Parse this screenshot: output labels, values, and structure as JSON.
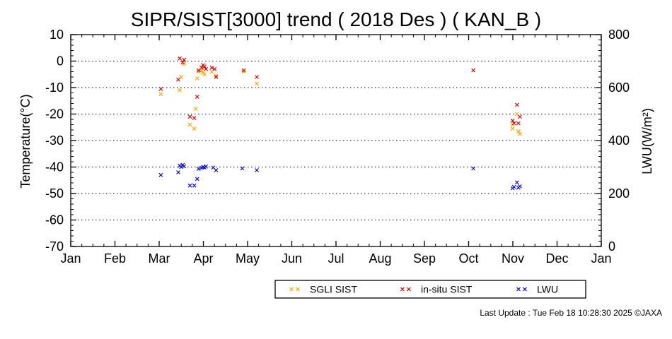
{
  "footer": "Last Update : Tue Feb 18 10:28:30 2025  ©JAXA",
  "colors": {
    "sgli": "#ffa500",
    "insitu": "#e00000",
    "lwu": "#0000e0",
    "axis": "#000000"
  },
  "chart_data": {
    "type": "scatter",
    "title": "SIPR/SIST[3000] trend ( 2018 Des ) ( KAN_B )",
    "ylabel": "Temperature(°C)",
    "y2label": "LWU(W/m²)",
    "xlabel": "",
    "x_tick_labels": [
      "Jan",
      "Feb",
      "Mar",
      "Apr",
      "May",
      "Jun",
      "Jul",
      "Aug",
      "Sep",
      "Oct",
      "Nov",
      "Dec",
      "Jan"
    ],
    "ylim": [
      -70,
      10
    ],
    "y_ticks": [
      10,
      0,
      -10,
      -20,
      -30,
      -40,
      -50,
      -60,
      -70
    ],
    "y2lim": [
      0,
      800
    ],
    "y2_ticks": [
      800,
      600,
      400,
      200,
      0
    ],
    "grid": "horizontal dotted",
    "legend_placement": "bottom-center",
    "series": [
      {
        "name": "SGLI SIST",
        "color": "#ffa500",
        "axis": "left",
        "points": [
          [
            "2018-03-04",
            -12.5
          ],
          [
            "2018-03-17",
            -11.0
          ],
          [
            "2018-03-18",
            -6.0
          ],
          [
            "2018-03-19",
            -0.5
          ],
          [
            "2018-03-20",
            -1.0
          ],
          [
            "2018-03-24",
            -24.0
          ],
          [
            "2018-03-27",
            -25.5
          ],
          [
            "2018-03-28",
            -18.0
          ],
          [
            "2018-03-29",
            -6.5
          ],
          [
            "2018-03-30",
            -4.0
          ],
          [
            "2018-04-01",
            -3.5
          ],
          [
            "2018-04-02",
            -4.5
          ],
          [
            "2018-04-03",
            -5.0
          ],
          [
            "2018-04-04",
            -3.0
          ],
          [
            "2018-04-08",
            -4.0
          ],
          [
            "2018-04-11",
            -5.5
          ],
          [
            "2018-04-30",
            -4.0
          ],
          [
            "2018-05-09",
            -8.5
          ],
          [
            "2018-11-01",
            -24.0
          ],
          [
            "2018-11-01",
            -25.5
          ],
          [
            "2018-11-04",
            -20.0
          ],
          [
            "2018-11-05",
            -26.5
          ],
          [
            "2018-11-06",
            -27.5
          ]
        ]
      },
      {
        "name": "in-situ SIST",
        "color": "#e00000",
        "axis": "left",
        "points": [
          [
            "2018-03-04",
            -10.5
          ],
          [
            "2018-03-16",
            -7.0
          ],
          [
            "2018-03-17",
            1.0
          ],
          [
            "2018-03-19",
            -0.5
          ],
          [
            "2018-03-20",
            0.5
          ],
          [
            "2018-03-24",
            -21.0
          ],
          [
            "2018-03-27",
            -21.5
          ],
          [
            "2018-03-29",
            -13.5
          ],
          [
            "2018-03-30",
            -3.5
          ],
          [
            "2018-04-01",
            -2.5
          ],
          [
            "2018-04-02",
            -1.5
          ],
          [
            "2018-04-03",
            -2.0
          ],
          [
            "2018-04-04",
            -3.0
          ],
          [
            "2018-04-08",
            -2.5
          ],
          [
            "2018-04-10",
            -3.0
          ],
          [
            "2018-04-11",
            -6.0
          ],
          [
            "2018-04-30",
            -3.5
          ],
          [
            "2018-05-09",
            -6.0
          ],
          [
            "2018-10-05",
            -3.5
          ],
          [
            "2018-11-01",
            -22.5
          ],
          [
            "2018-11-02",
            -23.5
          ],
          [
            "2018-11-04",
            -16.5
          ],
          [
            "2018-11-05",
            -23.5
          ],
          [
            "2018-11-06",
            -21.0
          ]
        ]
      },
      {
        "name": "LWU",
        "color": "#0000e0",
        "axis": "right",
        "points": [
          [
            "2018-03-04",
            270
          ],
          [
            "2018-03-16",
            280
          ],
          [
            "2018-03-17",
            305
          ],
          [
            "2018-03-18",
            300
          ],
          [
            "2018-03-19",
            308
          ],
          [
            "2018-03-20",
            303
          ],
          [
            "2018-03-24",
            230
          ],
          [
            "2018-03-27",
            230
          ],
          [
            "2018-03-29",
            255
          ],
          [
            "2018-03-30",
            293
          ],
          [
            "2018-04-01",
            297
          ],
          [
            "2018-04-02",
            300
          ],
          [
            "2018-04-03",
            298
          ],
          [
            "2018-04-04",
            302
          ],
          [
            "2018-04-09",
            298
          ],
          [
            "2018-04-11",
            288
          ],
          [
            "2018-04-29",
            295
          ],
          [
            "2018-05-09",
            288
          ],
          [
            "2018-10-05",
            295
          ],
          [
            "2018-11-01",
            220
          ],
          [
            "2018-11-02",
            225
          ],
          [
            "2018-11-04",
            242
          ],
          [
            "2018-11-05",
            222
          ],
          [
            "2018-11-06",
            227
          ]
        ]
      }
    ]
  }
}
